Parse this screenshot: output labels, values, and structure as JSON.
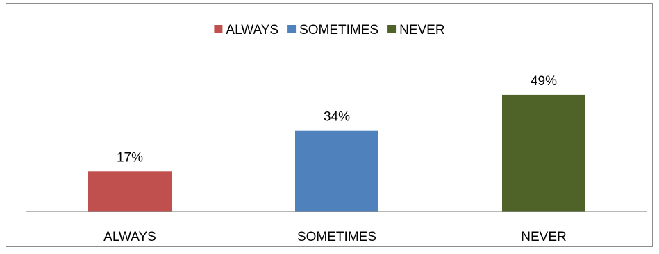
{
  "chart_data": {
    "type": "bar",
    "categories": [
      "ALWAYS",
      "SOMETIMES",
      "NEVER"
    ],
    "values": [
      17,
      34,
      49
    ],
    "data_labels": [
      "17%",
      "34%",
      "49%"
    ],
    "colors": [
      "#c0504d",
      "#4f81bd",
      "#4f6228"
    ],
    "legend": {
      "placement": "top",
      "entries": [
        "ALWAYS",
        "SOMETIMES",
        "NEVER"
      ]
    },
    "title": "",
    "xlabel": "",
    "ylabel": "",
    "ylim": [
      0,
      60
    ],
    "grid": false,
    "y_axis_visible": false
  }
}
